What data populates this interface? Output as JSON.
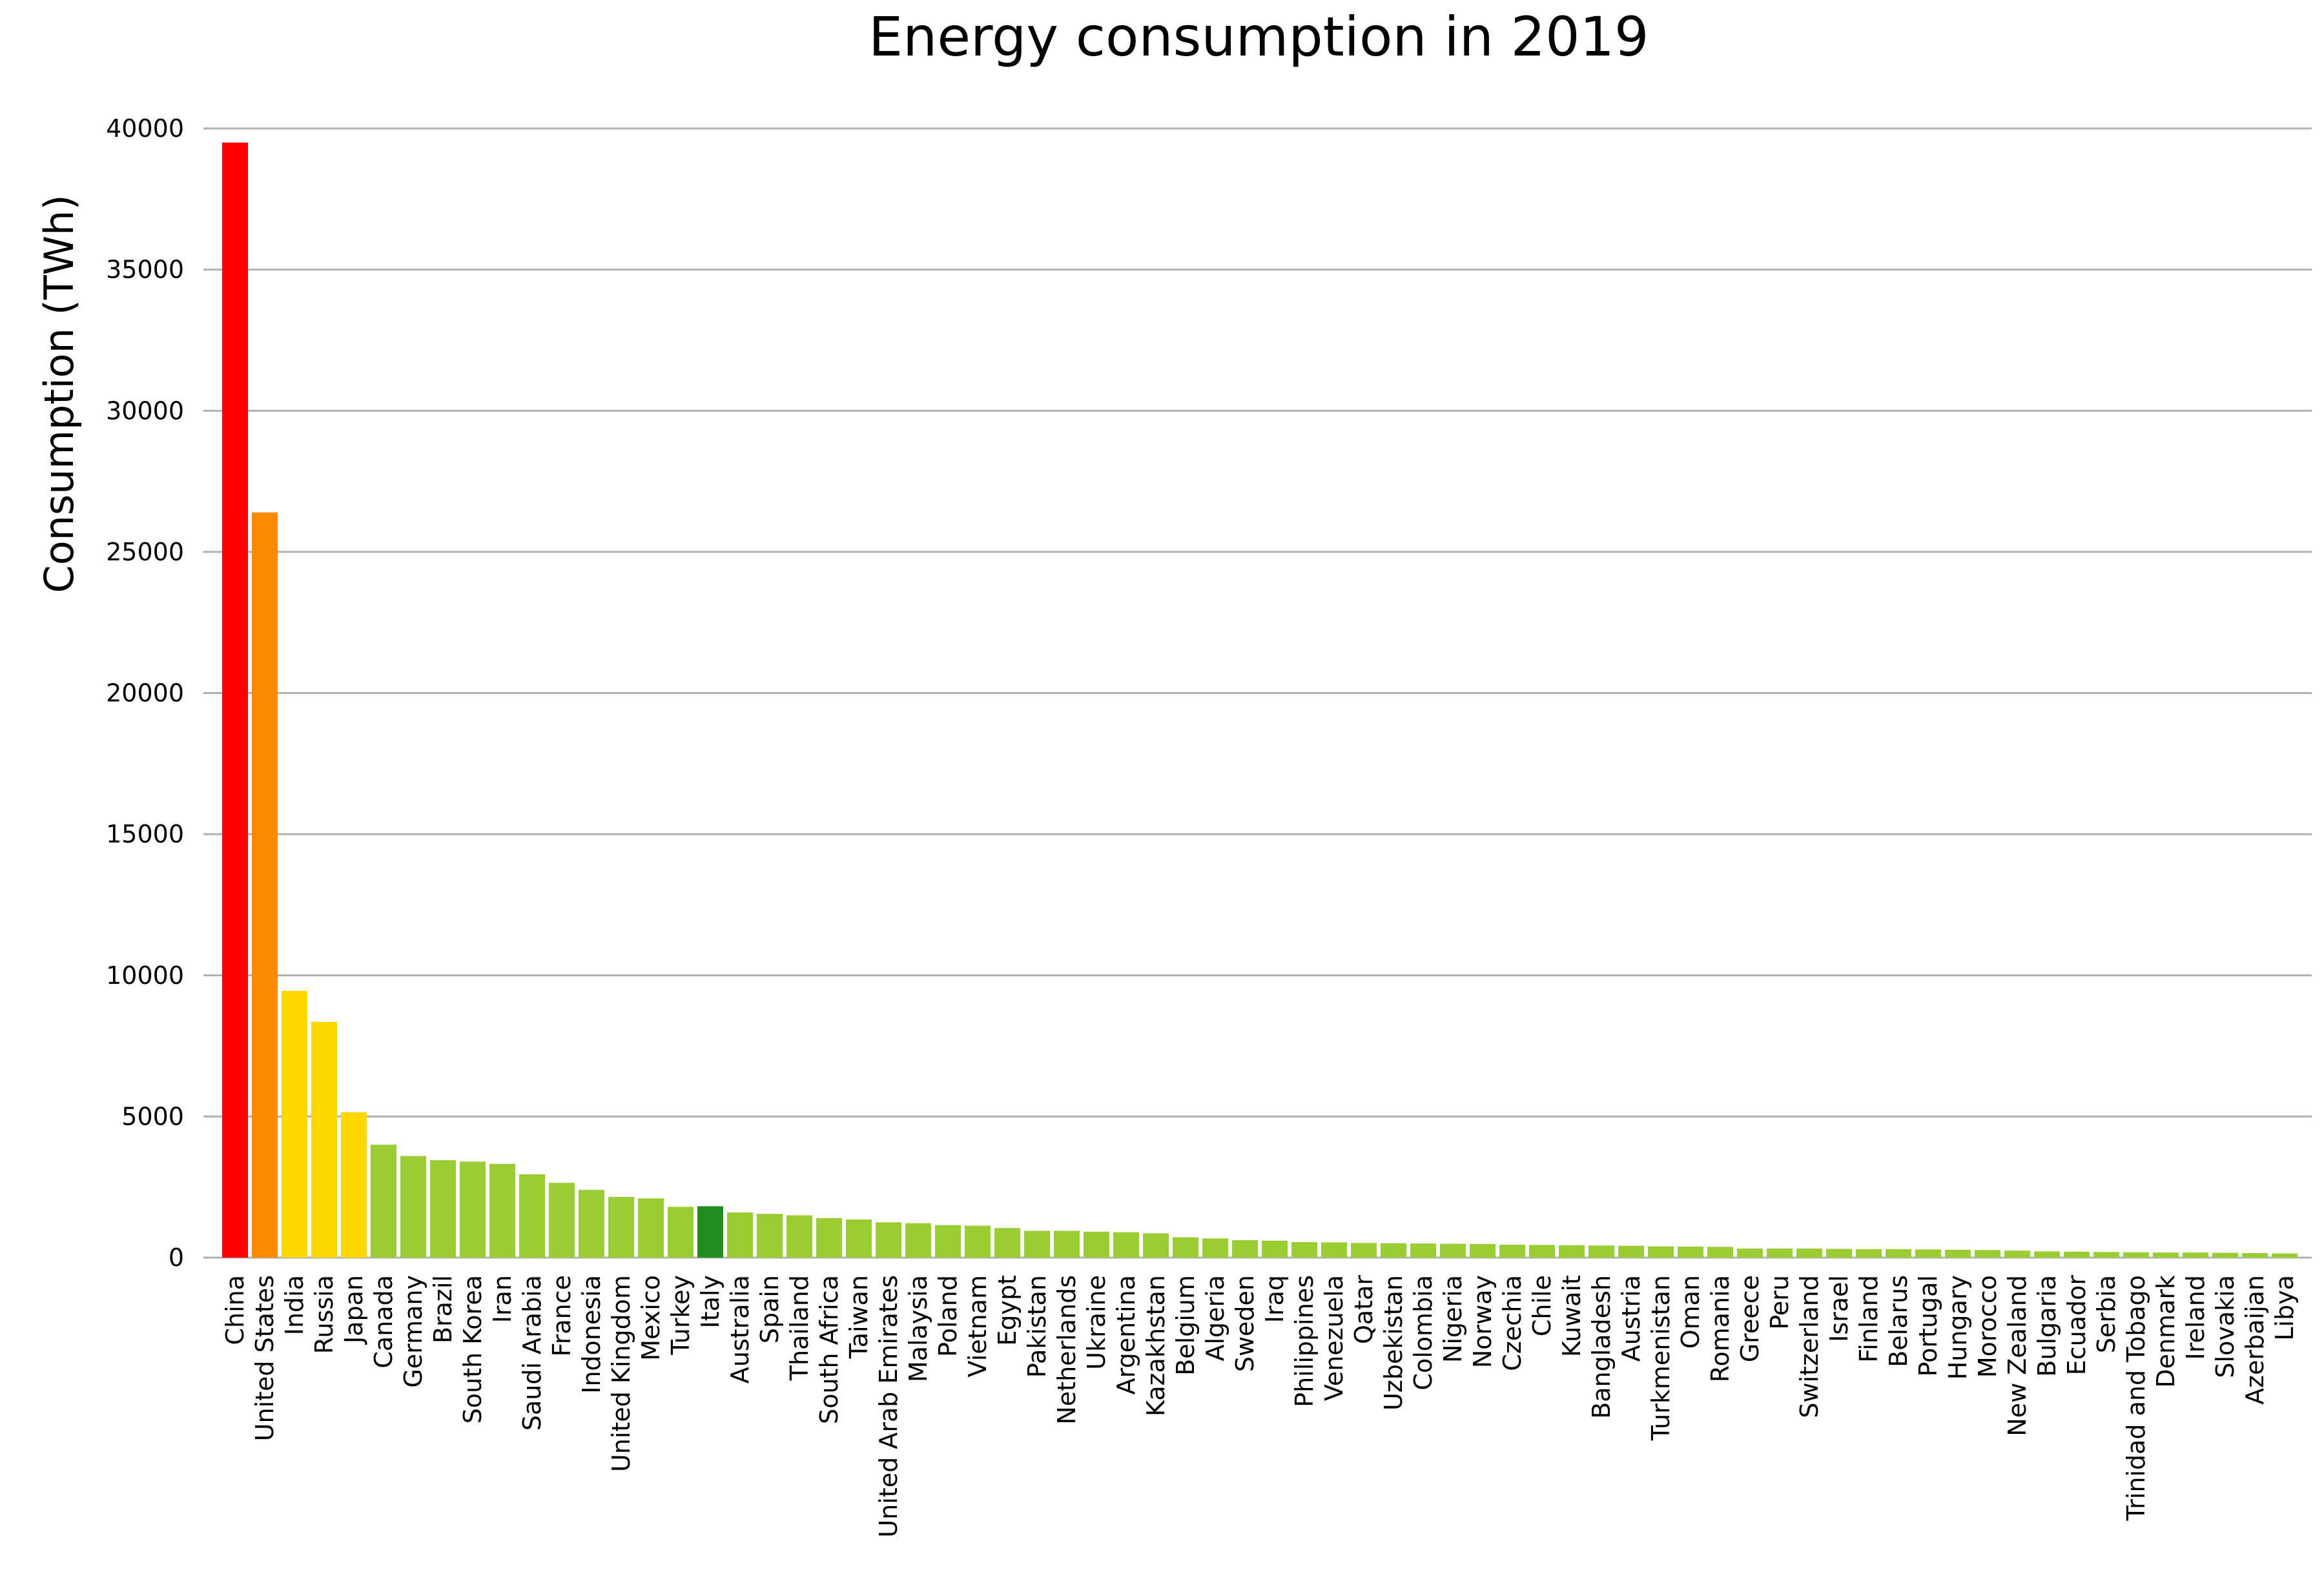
{
  "chart_data": {
    "type": "bar",
    "title": "Energy consumption in 2019",
    "xlabel": "",
    "ylabel": "Consumption (TWh)",
    "ylim": [
      0,
      40000
    ],
    "yticks": [
      0,
      5000,
      10000,
      15000,
      20000,
      25000,
      30000,
      35000,
      40000
    ],
    "grid": "horizontal",
    "categories": [
      "China",
      "United States",
      "India",
      "Russia",
      "Japan",
      "Canada",
      "Germany",
      "Brazil",
      "South Korea",
      "Iran",
      "Saudi Arabia",
      "France",
      "Indonesia",
      "United Kingdom",
      "Mexico",
      "Turkey",
      "Italy",
      "Australia",
      "Spain",
      "Thailand",
      "South Africa",
      "Taiwan",
      "United Arab Emirates",
      "Malaysia",
      "Poland",
      "Vietnam",
      "Egypt",
      "Pakistan",
      "Netherlands",
      "Ukraine",
      "Argentina",
      "Kazakhstan",
      "Belgium",
      "Algeria",
      "Sweden",
      "Iraq",
      "Philippines",
      "Venezuela",
      "Qatar",
      "Uzbekistan",
      "Colombia",
      "Nigeria",
      "Norway",
      "Czechia",
      "Chile",
      "Kuwait",
      "Bangladesh",
      "Austria",
      "Turkmenistan",
      "Oman",
      "Romania",
      "Greece",
      "Peru",
      "Switzerland",
      "Israel",
      "Finland",
      "Belarus",
      "Portugal",
      "Hungary",
      "Morocco",
      "New Zealand",
      "Bulgaria",
      "Ecuador",
      "Serbia",
      "Trinidad and Tobago",
      "Denmark",
      "Ireland",
      "Slovakia",
      "Azerbaijan",
      "Libya"
    ],
    "values": [
      39500,
      26400,
      9450,
      8350,
      5150,
      4000,
      3600,
      3450,
      3400,
      3320,
      2950,
      2650,
      2400,
      2150,
      2100,
      1800,
      1820,
      1600,
      1550,
      1500,
      1400,
      1350,
      1250,
      1220,
      1150,
      1130,
      1050,
      950,
      950,
      920,
      900,
      860,
      720,
      680,
      620,
      600,
      550,
      540,
      520,
      510,
      500,
      490,
      480,
      460,
      450,
      440,
      430,
      420,
      400,
      390,
      380,
      320,
      320,
      320,
      310,
      300,
      300,
      290,
      280,
      270,
      250,
      220,
      210,
      200,
      190,
      180,
      180,
      170,
      160,
      150
    ],
    "colors": [
      "#ff0000",
      "#ff8c00",
      "#ffd700",
      "#ffd700",
      "#ffd700",
      "#9acd32",
      "#9acd32",
      "#9acd32",
      "#9acd32",
      "#9acd32",
      "#9acd32",
      "#9acd32",
      "#9acd32",
      "#9acd32",
      "#9acd32",
      "#9acd32",
      "#228b22",
      "#9acd32",
      "#9acd32",
      "#9acd32",
      "#9acd32",
      "#9acd32",
      "#9acd32",
      "#9acd32",
      "#9acd32",
      "#9acd32",
      "#9acd32",
      "#9acd32",
      "#9acd32",
      "#9acd32",
      "#9acd32",
      "#9acd32",
      "#9acd32",
      "#9acd32",
      "#9acd32",
      "#9acd32",
      "#9acd32",
      "#9acd32",
      "#9acd32",
      "#9acd32",
      "#9acd32",
      "#9acd32",
      "#9acd32",
      "#9acd32",
      "#9acd32",
      "#9acd32",
      "#9acd32",
      "#9acd32",
      "#9acd32",
      "#9acd32",
      "#9acd32",
      "#9acd32",
      "#9acd32",
      "#9acd32",
      "#9acd32",
      "#9acd32",
      "#9acd32",
      "#9acd32",
      "#9acd32",
      "#9acd32",
      "#9acd32",
      "#9acd32",
      "#9acd32",
      "#9acd32",
      "#9acd32",
      "#9acd32",
      "#9acd32",
      "#9acd32",
      "#9acd32",
      "#9acd32"
    ],
    "gridline_color": "#b0b0b0",
    "tick_color": "#000000"
  }
}
